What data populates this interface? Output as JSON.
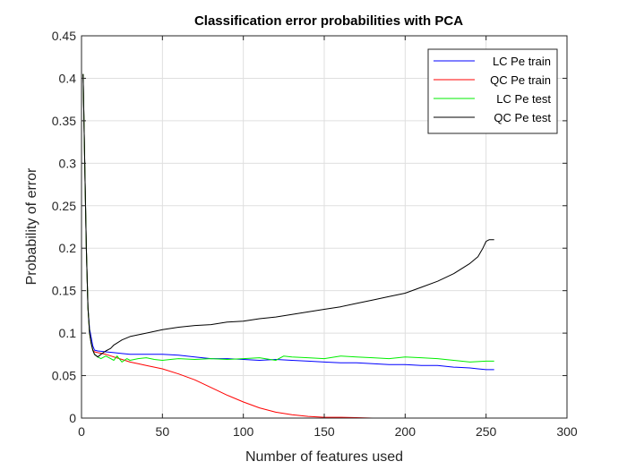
{
  "chart_data": {
    "type": "line",
    "title": "Classification error probabilities with PCA",
    "xlabel": "Number of features used",
    "ylabel": "Probability of error",
    "xlim": [
      0,
      300
    ],
    "ylim": [
      0,
      0.45
    ],
    "xticks": [
      0,
      50,
      100,
      150,
      200,
      250,
      300
    ],
    "xtick_labels": [
      "0",
      "50",
      "100",
      "150",
      "200",
      "250",
      "300"
    ],
    "yticks": [
      0,
      0.05,
      0.1,
      0.15,
      0.2,
      0.25,
      0.3,
      0.35,
      0.4,
      0.45
    ],
    "ytick_labels": [
      "0",
      "0.05",
      "0.1",
      "0.15",
      "0.2",
      "0.25",
      "0.3",
      "0.35",
      "0.4",
      "0.45"
    ],
    "grid": true,
    "legend_position": "top-right",
    "series": [
      {
        "name": "LC Pe train",
        "color": "#0000ff",
        "points": [
          [
            1,
            0.405
          ],
          [
            2,
            0.3
          ],
          [
            3,
            0.2
          ],
          [
            4,
            0.13
          ],
          [
            5,
            0.105
          ],
          [
            6,
            0.095
          ],
          [
            7,
            0.085
          ],
          [
            8,
            0.08
          ],
          [
            10,
            0.079
          ],
          [
            15,
            0.078
          ],
          [
            20,
            0.077
          ],
          [
            25,
            0.076
          ],
          [
            30,
            0.075
          ],
          [
            40,
            0.075
          ],
          [
            50,
            0.075
          ],
          [
            60,
            0.074
          ],
          [
            70,
            0.072
          ],
          [
            80,
            0.07
          ],
          [
            90,
            0.07
          ],
          [
            100,
            0.069
          ],
          [
            110,
            0.068
          ],
          [
            120,
            0.069
          ],
          [
            130,
            0.068
          ],
          [
            140,
            0.067
          ],
          [
            150,
            0.066
          ],
          [
            160,
            0.065
          ],
          [
            170,
            0.065
          ],
          [
            180,
            0.064
          ],
          [
            190,
            0.063
          ],
          [
            200,
            0.063
          ],
          [
            210,
            0.062
          ],
          [
            220,
            0.062
          ],
          [
            230,
            0.06
          ],
          [
            240,
            0.059
          ],
          [
            245,
            0.058
          ],
          [
            250,
            0.057
          ],
          [
            255,
            0.057
          ]
        ]
      },
      {
        "name": "QC Pe train",
        "color": "#ff0000",
        "points": [
          [
            1,
            0.405
          ],
          [
            2,
            0.3
          ],
          [
            3,
            0.2
          ],
          [
            4,
            0.13
          ],
          [
            5,
            0.1
          ],
          [
            6,
            0.088
          ],
          [
            7,
            0.08
          ],
          [
            8,
            0.078
          ],
          [
            10,
            0.077
          ],
          [
            15,
            0.075
          ],
          [
            20,
            0.072
          ],
          [
            25,
            0.069
          ],
          [
            30,
            0.066
          ],
          [
            35,
            0.064
          ],
          [
            40,
            0.062
          ],
          [
            50,
            0.058
          ],
          [
            60,
            0.052
          ],
          [
            70,
            0.045
          ],
          [
            80,
            0.036
          ],
          [
            90,
            0.027
          ],
          [
            100,
            0.019
          ],
          [
            110,
            0.012
          ],
          [
            120,
            0.007
          ],
          [
            130,
            0.004
          ],
          [
            140,
            0.002
          ],
          [
            150,
            0.001
          ],
          [
            160,
            0.001
          ],
          [
            170,
            0.0005
          ],
          [
            180,
            0.0
          ],
          [
            200,
            0.0
          ],
          [
            220,
            0.0
          ],
          [
            240,
            0.0
          ],
          [
            255,
            0.0
          ]
        ]
      },
      {
        "name": "LC Pe test",
        "color": "#00ee00",
        "points": [
          [
            1,
            0.405
          ],
          [
            2,
            0.3
          ],
          [
            3,
            0.2
          ],
          [
            4,
            0.13
          ],
          [
            5,
            0.1
          ],
          [
            6,
            0.088
          ],
          [
            7,
            0.08
          ],
          [
            8,
            0.075
          ],
          [
            10,
            0.072
          ],
          [
            12,
            0.07
          ],
          [
            15,
            0.073
          ],
          [
            17,
            0.071
          ],
          [
            20,
            0.068
          ],
          [
            22,
            0.073
          ],
          [
            25,
            0.066
          ],
          [
            28,
            0.07
          ],
          [
            30,
            0.068
          ],
          [
            35,
            0.07
          ],
          [
            40,
            0.071
          ],
          [
            45,
            0.069
          ],
          [
            50,
            0.068
          ],
          [
            55,
            0.069
          ],
          [
            60,
            0.07
          ],
          [
            70,
            0.069
          ],
          [
            80,
            0.07
          ],
          [
            90,
            0.069
          ],
          [
            100,
            0.07
          ],
          [
            110,
            0.071
          ],
          [
            120,
            0.068
          ],
          [
            125,
            0.073
          ],
          [
            130,
            0.072
          ],
          [
            140,
            0.071
          ],
          [
            150,
            0.07
          ],
          [
            160,
            0.073
          ],
          [
            170,
            0.072
          ],
          [
            180,
            0.071
          ],
          [
            190,
            0.07
          ],
          [
            200,
            0.072
          ],
          [
            210,
            0.071
          ],
          [
            220,
            0.07
          ],
          [
            230,
            0.068
          ],
          [
            240,
            0.066
          ],
          [
            250,
            0.067
          ],
          [
            255,
            0.067
          ]
        ]
      },
      {
        "name": "QC Pe test",
        "color": "#000000",
        "points": [
          [
            1,
            0.405
          ],
          [
            2,
            0.3
          ],
          [
            3,
            0.2
          ],
          [
            4,
            0.13
          ],
          [
            5,
            0.1
          ],
          [
            6,
            0.088
          ],
          [
            7,
            0.08
          ],
          [
            8,
            0.075
          ],
          [
            10,
            0.072
          ],
          [
            12,
            0.075
          ],
          [
            15,
            0.079
          ],
          [
            18,
            0.082
          ],
          [
            20,
            0.086
          ],
          [
            25,
            0.092
          ],
          [
            30,
            0.096
          ],
          [
            35,
            0.098
          ],
          [
            40,
            0.1
          ],
          [
            50,
            0.104
          ],
          [
            60,
            0.107
          ],
          [
            70,
            0.109
          ],
          [
            80,
            0.11
          ],
          [
            90,
            0.113
          ],
          [
            100,
            0.114
          ],
          [
            110,
            0.117
          ],
          [
            120,
            0.119
          ],
          [
            130,
            0.122
          ],
          [
            140,
            0.125
          ],
          [
            150,
            0.128
          ],
          [
            160,
            0.131
          ],
          [
            170,
            0.135
          ],
          [
            180,
            0.139
          ],
          [
            190,
            0.143
          ],
          [
            200,
            0.147
          ],
          [
            210,
            0.154
          ],
          [
            220,
            0.161
          ],
          [
            230,
            0.17
          ],
          [
            240,
            0.182
          ],
          [
            245,
            0.19
          ],
          [
            248,
            0.2
          ],
          [
            250,
            0.208
          ],
          [
            252,
            0.21
          ],
          [
            255,
            0.21
          ]
        ]
      }
    ]
  }
}
